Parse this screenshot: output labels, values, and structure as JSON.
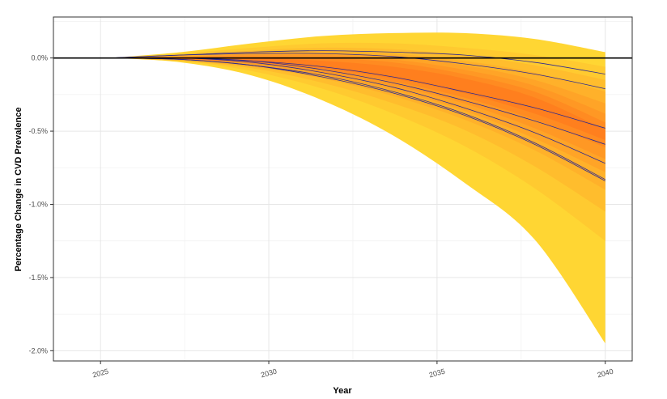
{
  "colors": {
    "background": "#ffffff",
    "grid": "#e6e6e6",
    "fan_outer": "#ffd633",
    "fan_inner": "#ff7f1e",
    "series_line": "#2e2a8f",
    "zero_line": "#000000"
  },
  "chart_data": {
    "type": "area",
    "title": "",
    "xlabel": "Year",
    "ylabel": "Percentage Change in CVD Prevalence",
    "xlim": [
      2023.6,
      2040.8
    ],
    "ylim": [
      -2.07,
      0.28
    ],
    "x_ticks": [
      {
        "value": 2025,
        "label": "2025"
      },
      {
        "value": 2030,
        "label": "2030"
      },
      {
        "value": 2035,
        "label": "2035"
      },
      {
        "value": 2040,
        "label": "2040"
      }
    ],
    "y_ticks": [
      {
        "value": 0.0,
        "label": "0.0%"
      },
      {
        "value": -0.5,
        "label": "-0.5%"
      },
      {
        "value": -1.0,
        "label": "-1.0%"
      },
      {
        "value": -1.5,
        "label": "-1.5%"
      },
      {
        "value": -2.0,
        "label": "-2.0%"
      }
    ],
    "grid": true,
    "reference_line_y": 0.0,
    "x_start": 2025.3,
    "x_end": 2040,
    "fan_bands": [
      {
        "level": 1,
        "lower": [
          0,
          -0.03,
          -0.12,
          -0.29,
          -0.53,
          -0.85,
          -1.24,
          -1.95
        ],
        "upper": [
          0,
          0.04,
          0.1,
          0.15,
          0.17,
          0.17,
          0.13,
          0.04
        ]
      },
      {
        "level": 2,
        "lower": [
          0,
          -0.02,
          -0.09,
          -0.21,
          -0.38,
          -0.6,
          -0.89,
          -1.25
        ],
        "upper": [
          0,
          0.03,
          0.07,
          0.1,
          0.1,
          0.07,
          0.02,
          -0.06
        ]
      },
      {
        "level": 3,
        "lower": [
          0,
          -0.02,
          -0.07,
          -0.17,
          -0.31,
          -0.49,
          -0.74,
          -1.05
        ],
        "upper": [
          0,
          0.02,
          0.05,
          0.07,
          0.06,
          0.02,
          -0.05,
          -0.15
        ]
      },
      {
        "level": 4,
        "lower": [
          0,
          -0.02,
          -0.06,
          -0.14,
          -0.26,
          -0.42,
          -0.63,
          -0.9
        ],
        "upper": [
          0,
          0.02,
          0.04,
          0.05,
          0.03,
          -0.02,
          -0.1,
          -0.23
        ]
      },
      {
        "level": 5,
        "lower": [
          0,
          -0.01,
          -0.05,
          -0.12,
          -0.22,
          -0.36,
          -0.55,
          -0.78
        ],
        "upper": [
          0,
          0.01,
          0.03,
          0.03,
          0.01,
          -0.05,
          -0.15,
          -0.31
        ]
      },
      {
        "level": 6,
        "lower": [
          0,
          -0.01,
          -0.04,
          -0.1,
          -0.19,
          -0.31,
          -0.48,
          -0.69
        ],
        "upper": [
          0,
          0.01,
          0.02,
          0.02,
          -0.01,
          -0.08,
          -0.19,
          -0.38
        ]
      },
      {
        "level": 7,
        "lower": [
          0,
          -0.01,
          -0.03,
          -0.08,
          -0.16,
          -0.27,
          -0.42,
          -0.61
        ],
        "upper": [
          0,
          0.01,
          0.01,
          0.0,
          -0.03,
          -0.11,
          -0.23,
          -0.44
        ]
      },
      {
        "level": 8,
        "lower": [
          0,
          -0.01,
          -0.03,
          -0.07,
          -0.14,
          -0.24,
          -0.38,
          -0.56
        ],
        "upper": [
          0,
          0.0,
          0.0,
          -0.02,
          -0.06,
          -0.14,
          -0.27,
          -0.49
        ]
      }
    ],
    "band_x": [
      2025.3,
      2027.4,
      2029.5,
      2031.6,
      2033.7,
      2035.8,
      2037.9,
      2040
    ],
    "series": [
      {
        "x": [
          2025.3,
          2027.4,
          2029.5,
          2031.6,
          2033.7,
          2035.8,
          2037.9,
          2040
        ],
        "y": [
          0,
          0.02,
          0.04,
          0.05,
          0.04,
          0.02,
          -0.03,
          -0.11
        ]
      },
      {
        "x": [
          2025.3,
          2027.4,
          2029.5,
          2031.6,
          2033.7,
          2035.8,
          2037.9,
          2040
        ],
        "y": [
          0,
          0.02,
          0.03,
          0.03,
          0.01,
          -0.04,
          -0.11,
          -0.21
        ]
      },
      {
        "x": [
          2025.3,
          2027.4,
          2029.5,
          2031.6,
          2033.7,
          2035.8,
          2037.9,
          2040
        ],
        "y": [
          0,
          0.0,
          -0.02,
          -0.06,
          -0.13,
          -0.23,
          -0.34,
          -0.48
        ]
      },
      {
        "x": [
          2025.3,
          2027.4,
          2029.5,
          2031.6,
          2033.7,
          2035.8,
          2037.9,
          2040
        ],
        "y": [
          0,
          0.0,
          -0.02,
          -0.08,
          -0.17,
          -0.29,
          -0.43,
          -0.59
        ]
      },
      {
        "x": [
          2025.3,
          2027.4,
          2029.5,
          2031.6,
          2033.7,
          2035.8,
          2037.9,
          2040
        ],
        "y": [
          0,
          0.0,
          -0.03,
          -0.1,
          -0.2,
          -0.34,
          -0.51,
          -0.72
        ]
      },
      {
        "x": [
          2025.3,
          2027.4,
          2029.5,
          2031.6,
          2033.7,
          2035.8,
          2037.9,
          2040
        ],
        "y": [
          0,
          -0.01,
          -0.05,
          -0.13,
          -0.24,
          -0.39,
          -0.59,
          -0.84
        ]
      },
      {
        "x": [
          2025.3,
          2027.4,
          2029.5,
          2031.6,
          2033.7,
          2035.8,
          2037.9,
          2040
        ],
        "y": [
          0,
          -0.01,
          -0.05,
          -0.12,
          -0.23,
          -0.38,
          -0.58,
          -0.83
        ]
      }
    ]
  }
}
